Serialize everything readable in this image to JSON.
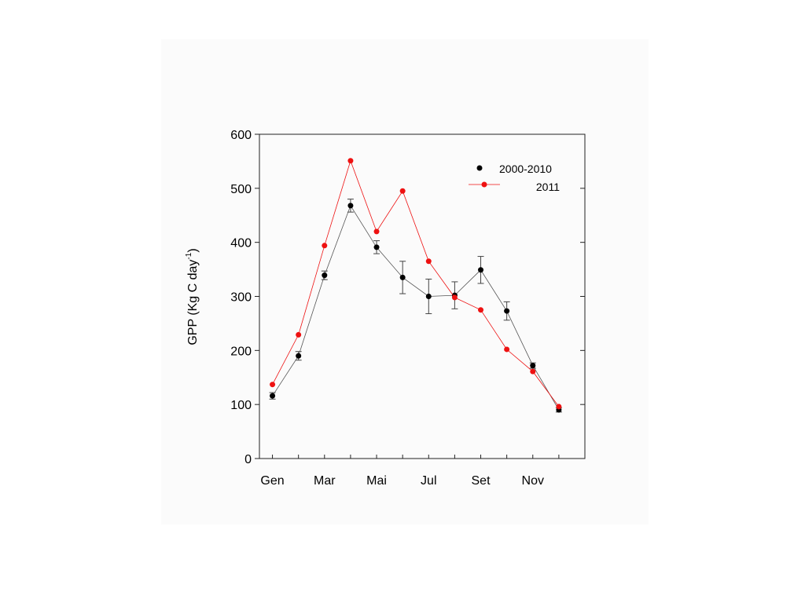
{
  "chart_data": {
    "type": "line",
    "title": "",
    "ylabel": {
      "main": "GPP (Kg C day",
      "sup": "-1",
      "close": ")"
    },
    "ylim": [
      0,
      600
    ],
    "yticks": [
      0,
      100,
      200,
      300,
      400,
      500,
      600
    ],
    "x": [
      1,
      2,
      3,
      4,
      5,
      6,
      7,
      8,
      9,
      10,
      11,
      12
    ],
    "xlim": [
      0.5,
      13
    ],
    "xticks": [
      {
        "x": 1,
        "label": "Gen"
      },
      {
        "x": 3,
        "label": "Mar"
      },
      {
        "x": 5,
        "label": "Mai"
      },
      {
        "x": 7,
        "label": "Jul"
      },
      {
        "x": 9,
        "label": "Set"
      },
      {
        "x": 11,
        "label": "Nov"
      }
    ],
    "grid": false,
    "legend_position": "top-right",
    "series": [
      {
        "name": "2000-2010",
        "color": "#000000",
        "line_color": "#555555",
        "values": [
          116,
          190,
          339,
          468,
          391,
          335,
          300,
          302,
          349,
          273,
          172,
          90
        ],
        "errors": [
          6,
          8,
          8,
          12,
          12,
          30,
          32,
          25,
          25,
          17,
          5,
          4
        ]
      },
      {
        "name": "2011",
        "color": "#ee1111",
        "line_color": "#ee1111",
        "values": [
          137,
          229,
          394,
          551,
          420,
          495,
          365,
          298,
          275,
          202,
          161,
          96
        ]
      }
    ]
  }
}
